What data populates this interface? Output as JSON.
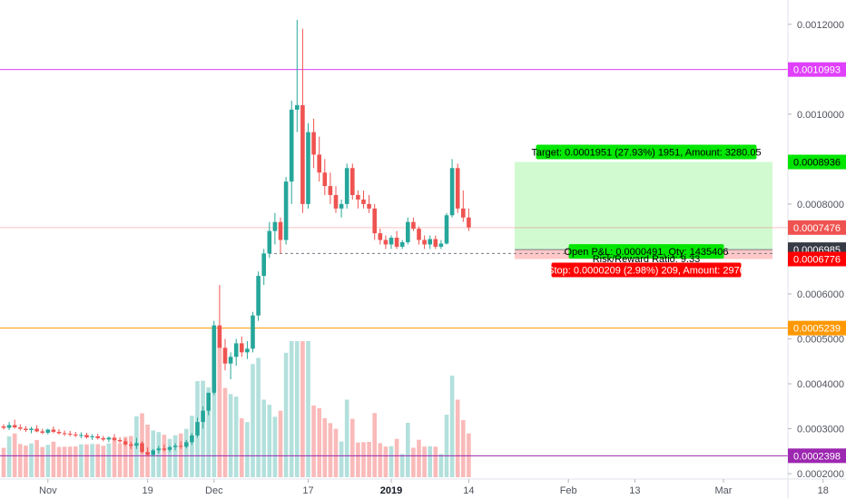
{
  "chart_data": {
    "type": "candlestick",
    "y_axis": {
      "min": 0.00019,
      "max": 0.00125,
      "ticks": [
        "0.0002000",
        "0.0003000",
        "0.0004000",
        "0.0005000",
        "0.0006000",
        "0.0008000",
        "0.0010000",
        "0.0012000"
      ],
      "tick_values": [
        0.0002,
        0.0003,
        0.0004,
        0.0005,
        0.0006,
        0.0008,
        0.001,
        0.0012
      ]
    },
    "x_axis": {
      "ticks": [
        {
          "label": "Nov",
          "bold": false,
          "t": 8
        },
        {
          "label": "19",
          "bold": false,
          "t": 26
        },
        {
          "label": "Dec",
          "bold": false,
          "t": 38
        },
        {
          "label": "17",
          "bold": false,
          "t": 55
        },
        {
          "label": "2019",
          "bold": true,
          "t": 70
        },
        {
          "label": "14",
          "bold": false,
          "t": 84
        },
        {
          "label": "Feb",
          "bold": false,
          "t": 102
        },
        {
          "label": "13",
          "bold": false,
          "t": 114
        },
        {
          "label": "Mar",
          "bold": false,
          "t": 130
        },
        {
          "label": "18",
          "bold": false,
          "t": 148
        }
      ]
    },
    "candles": [
      [
        0.000305,
        0.00031,
        0.000298,
        0.000302
      ],
      [
        0.000302,
        0.000315,
        0.000297,
        0.000308
      ],
      [
        0.000308,
        0.00032,
        0.0003,
        0.000303
      ],
      [
        0.000303,
        0.00031,
        0.000296,
        0.0003
      ],
      [
        0.0003,
        0.000306,
        0.000293,
        0.000297
      ],
      [
        0.000297,
        0.000304,
        0.00029,
        0.0003
      ],
      [
        0.0003,
        0.000308,
        0.000292,
        0.000294
      ],
      [
        0.000294,
        0.0003,
        0.000288,
        0.000291
      ],
      [
        0.000291,
        0.0003,
        0.000287,
        0.000298
      ],
      [
        0.000298,
        0.000305,
        0.00029,
        0.000293
      ],
      [
        0.000293,
        0.000299,
        0.000287,
        0.00029
      ],
      [
        0.00029,
        0.000296,
        0.000284,
        0.000289
      ],
      [
        0.000289,
        0.000295,
        0.000283,
        0.000287
      ],
      [
        0.000287,
        0.000293,
        0.000281,
        0.000285
      ],
      [
        0.000285,
        0.000292,
        0.000279,
        0.000286
      ],
      [
        0.000286,
        0.000291,
        0.000278,
        0.000281
      ],
      [
        0.000281,
        0.000288,
        0.000275,
        0.000283
      ],
      [
        0.000283,
        0.000289,
        0.000276,
        0.000279
      ],
      [
        0.000279,
        0.000284,
        0.000272,
        0.000276
      ],
      [
        0.000276,
        0.000283,
        0.00027,
        0.00028
      ],
      [
        0.00028,
        0.000288,
        0.000272,
        0.000275
      ],
      [
        0.000275,
        0.000281,
        0.000268,
        0.000272
      ],
      [
        0.000272,
        0.000278,
        0.000262,
        0.000265
      ],
      [
        0.000265,
        0.000271,
        0.000255,
        0.000262
      ],
      [
        0.000262,
        0.00028,
        0.000255,
        0.000268
      ],
      [
        0.000268,
        0.000272,
        0.000245,
        0.000248
      ],
      [
        0.000248,
        0.000258,
        0.000238,
        0.000242
      ],
      [
        0.000242,
        0.000255,
        0.000238,
        0.000252
      ],
      [
        0.000252,
        0.000262,
        0.000245,
        0.000256
      ],
      [
        0.000256,
        0.000265,
        0.000249,
        0.000253
      ],
      [
        0.000253,
        0.000262,
        0.000248,
        0.000259
      ],
      [
        0.000259,
        0.000268,
        0.000252,
        0.000262
      ],
      [
        0.000262,
        0.000272,
        0.000255,
        0.00026
      ],
      [
        0.00026,
        0.000275,
        0.000256,
        0.00027
      ],
      [
        0.00027,
        0.00029,
        0.000264,
        0.000285
      ],
      [
        0.000285,
        0.000325,
        0.00028,
        0.000315
      ],
      [
        0.000315,
        0.00035,
        0.0003,
        0.00034
      ],
      [
        0.00034,
        0.00038,
        0.00033,
        0.00038
      ],
      [
        0.00038,
        0.00054,
        0.000375,
        0.00053
      ],
      [
        0.00053,
        0.00062,
        0.00049,
        0.00048
      ],
      [
        0.00048,
        0.0005,
        0.00043,
        0.000445
      ],
      [
        0.000445,
        0.00047,
        0.00041,
        0.00046
      ],
      [
        0.00046,
        0.0005,
        0.00044,
        0.00049
      ],
      [
        0.00049,
        0.000505,
        0.00046,
        0.00047
      ],
      [
        0.00047,
        0.000495,
        0.000455,
        0.000478
      ],
      [
        0.000478,
        0.00056,
        0.00047,
        0.000552
      ],
      [
        0.000552,
        0.00065,
        0.00054,
        0.00064
      ],
      [
        0.00064,
        0.0007,
        0.00062,
        0.00069
      ],
      [
        0.00069,
        0.00076,
        0.00068,
        0.00074
      ],
      [
        0.00074,
        0.00078,
        0.00071,
        0.00076
      ],
      [
        0.00076,
        0.00077,
        0.00069,
        0.00072
      ],
      [
        0.00072,
        0.00086,
        0.00071,
        0.00085
      ],
      [
        0.00085,
        0.00103,
        0.0008,
        0.00101
      ],
      [
        0.00101,
        0.00121,
        0.00096,
        0.00102
      ],
      [
        0.00102,
        0.00119,
        0.00078,
        0.0008
      ],
      [
        0.0008,
        0.00098,
        0.00079,
        0.00096
      ],
      [
        0.00096,
        0.00099,
        0.00088,
        0.00091
      ],
      [
        0.00091,
        0.00095,
        0.00085,
        0.00087
      ],
      [
        0.00087,
        0.0009,
        0.00082,
        0.00084
      ],
      [
        0.00084,
        0.00087,
        0.0008,
        0.00082
      ],
      [
        0.00082,
        0.00084,
        0.00078,
        0.00079
      ],
      [
        0.00079,
        0.00081,
        0.00077,
        0.0008
      ],
      [
        0.0008,
        0.00089,
        0.00079,
        0.00088
      ],
      [
        0.00088,
        0.00089,
        0.00081,
        0.00082
      ],
      [
        0.00082,
        0.00083,
        0.00079,
        0.00081
      ],
      [
        0.00081,
        0.00083,
        0.00079,
        0.0008
      ],
      [
        0.0008,
        0.00082,
        0.00078,
        0.00079
      ],
      [
        0.00079,
        0.0008,
        0.00072,
        0.000735
      ],
      [
        0.000735,
        0.000745,
        0.00071,
        0.00072
      ],
      [
        0.00072,
        0.00073,
        0.0007,
        0.00071
      ],
      [
        0.00071,
        0.00073,
        0.0007,
        0.000725
      ],
      [
        0.000725,
        0.00074,
        0.0007,
        0.000705
      ],
      [
        0.000705,
        0.00072,
        0.0007,
        0.000715
      ],
      [
        0.000715,
        0.00077,
        0.00071,
        0.00076
      ],
      [
        0.00076,
        0.00077,
        0.00074,
        0.000745
      ],
      [
        0.000745,
        0.00075,
        0.00071,
        0.00072
      ],
      [
        0.00072,
        0.00073,
        0.0007,
        0.00071
      ],
      [
        0.00071,
        0.00073,
        0.0007,
        0.000722
      ],
      [
        0.000722,
        0.00073,
        0.0007,
        0.000705
      ],
      [
        0.000705,
        0.00072,
        0.0007,
        0.000712
      ],
      [
        0.000712,
        0.00078,
        0.00071,
        0.000775
      ],
      [
        0.000775,
        0.0009,
        0.00077,
        0.00088
      ],
      [
        0.00088,
        0.00089,
        0.00078,
        0.00079
      ],
      [
        0.00079,
        0.00083,
        0.00076,
        0.00077
      ],
      [
        0.00077,
        0.00079,
        0.00074,
        0.000748
      ]
    ],
    "volume_max": 0.000455,
    "horizontal_lines": [
      {
        "value": 0.0010993,
        "color": "#e040fb",
        "label": "0.0010993"
      },
      {
        "value": 0.0005239,
        "color": "#ff9800",
        "label": "0.0005239"
      },
      {
        "value": 0.0002398,
        "color": "#9c27b0",
        "label": "0.0002398"
      }
    ],
    "price_tags": [
      {
        "value": 0.0008936,
        "label": "0.0008936",
        "bg": "#00e600",
        "fg": "#000000"
      },
      {
        "value": 0.0007476,
        "label": "0.0007476",
        "bg": "#ef5350",
        "fg": "#ffffff"
      },
      {
        "value": 0.0006985,
        "label": "0.0006985",
        "bg": "#363a45",
        "fg": "#ffffff"
      },
      {
        "value": 0.0006776,
        "label": "0.0006776",
        "bg": "#ff0000",
        "fg": "#ffffff"
      }
    ],
    "position": {
      "entry": 0.0006985,
      "target": 0.0008936,
      "stop": 0.0006776,
      "target_label": "Target: 0.0001951 (27.93%) 1951, Amount: 3280.05",
      "stop_label": "Stop: 0.0000209 (2.98%) 209, Amount: 2970",
      "pnl_label": "Open P&L: 0.0000491, Qty: 1435406",
      "ratio_label": "Risk/Reward Ratio: 9.33"
    },
    "current_price": 0.0007476
  }
}
